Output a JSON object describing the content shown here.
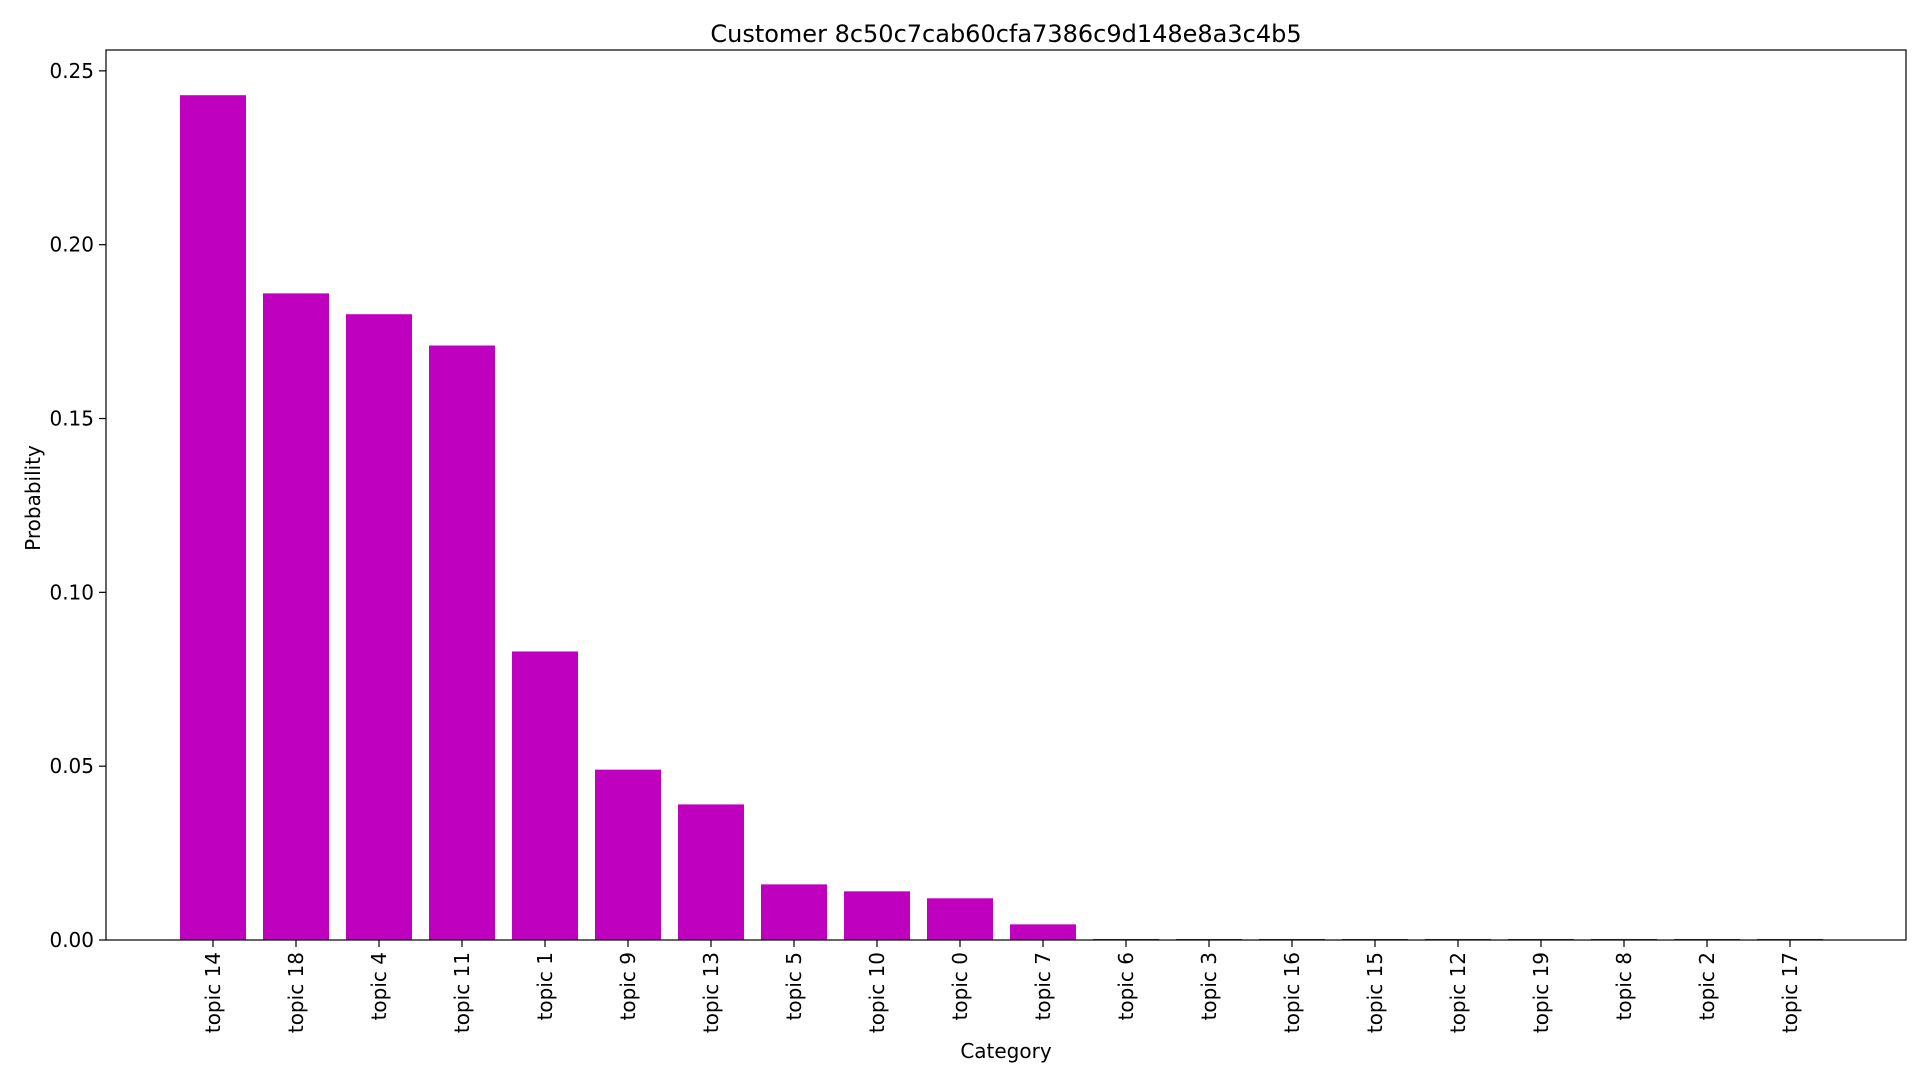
{
  "chart_data": {
    "type": "bar",
    "title": "Customer 8c50c7cab60cfa7386c9d148e8a3c4b5",
    "xlabel": "Category",
    "ylabel": "Probability",
    "ylim": [
      0,
      0.256
    ],
    "yticks": [
      "0.00",
      "0.05",
      "0.10",
      "0.15",
      "0.20",
      "0.25"
    ],
    "bar_color": "#bf00bf",
    "grid": false,
    "categories": [
      "topic 14",
      "topic 18",
      "topic 4",
      "topic 11",
      "topic 1",
      "topic 9",
      "topic 13",
      "topic 5",
      "topic 10",
      "topic 0",
      "topic 7",
      "topic 6",
      "topic 3",
      "topic 16",
      "topic 15",
      "topic 12",
      "topic 19",
      "topic 8",
      "topic 2",
      "topic 17"
    ],
    "values": [
      0.243,
      0.186,
      0.18,
      0.171,
      0.083,
      0.049,
      0.039,
      0.016,
      0.014,
      0.012,
      0.0045,
      0.0003,
      0.0003,
      0.0003,
      0.0003,
      0.0003,
      0.0003,
      0.0003,
      0.0003,
      0.0003
    ]
  }
}
